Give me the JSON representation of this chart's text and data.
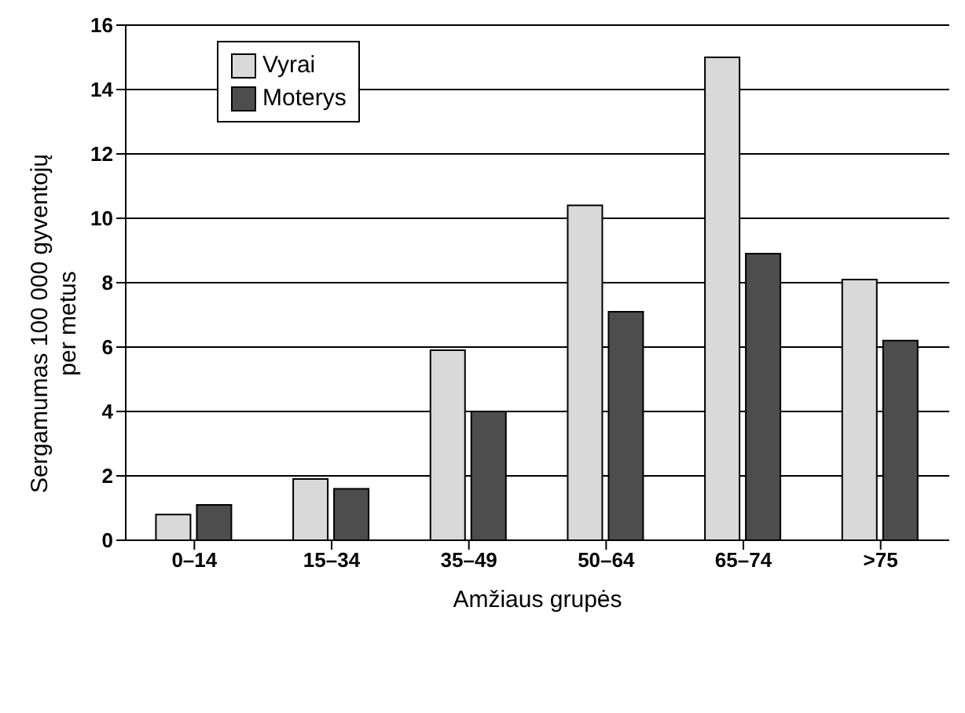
{
  "chart_data": {
    "type": "bar",
    "xlabel": "Amžiaus grupės",
    "ylabel": "Sergamumas 100 000 gyventojų per metus",
    "categories": [
      "0–14",
      "15–34",
      "35–49",
      "50–64",
      "65–74",
      ">75"
    ],
    "series": [
      {
        "name": "Vyrai",
        "color": "#d9d9d9",
        "values": [
          0.8,
          1.9,
          5.9,
          10.4,
          15.0,
          8.1
        ]
      },
      {
        "name": "Moterys",
        "color": "#4d4d4d",
        "values": [
          1.1,
          1.6,
          4.0,
          7.1,
          8.9,
          6.2
        ]
      }
    ],
    "ylim": [
      0,
      16
    ],
    "yticks": [
      0,
      2,
      4,
      6,
      8,
      10,
      12,
      14,
      16
    ],
    "grid": "y",
    "legend": "top left"
  }
}
